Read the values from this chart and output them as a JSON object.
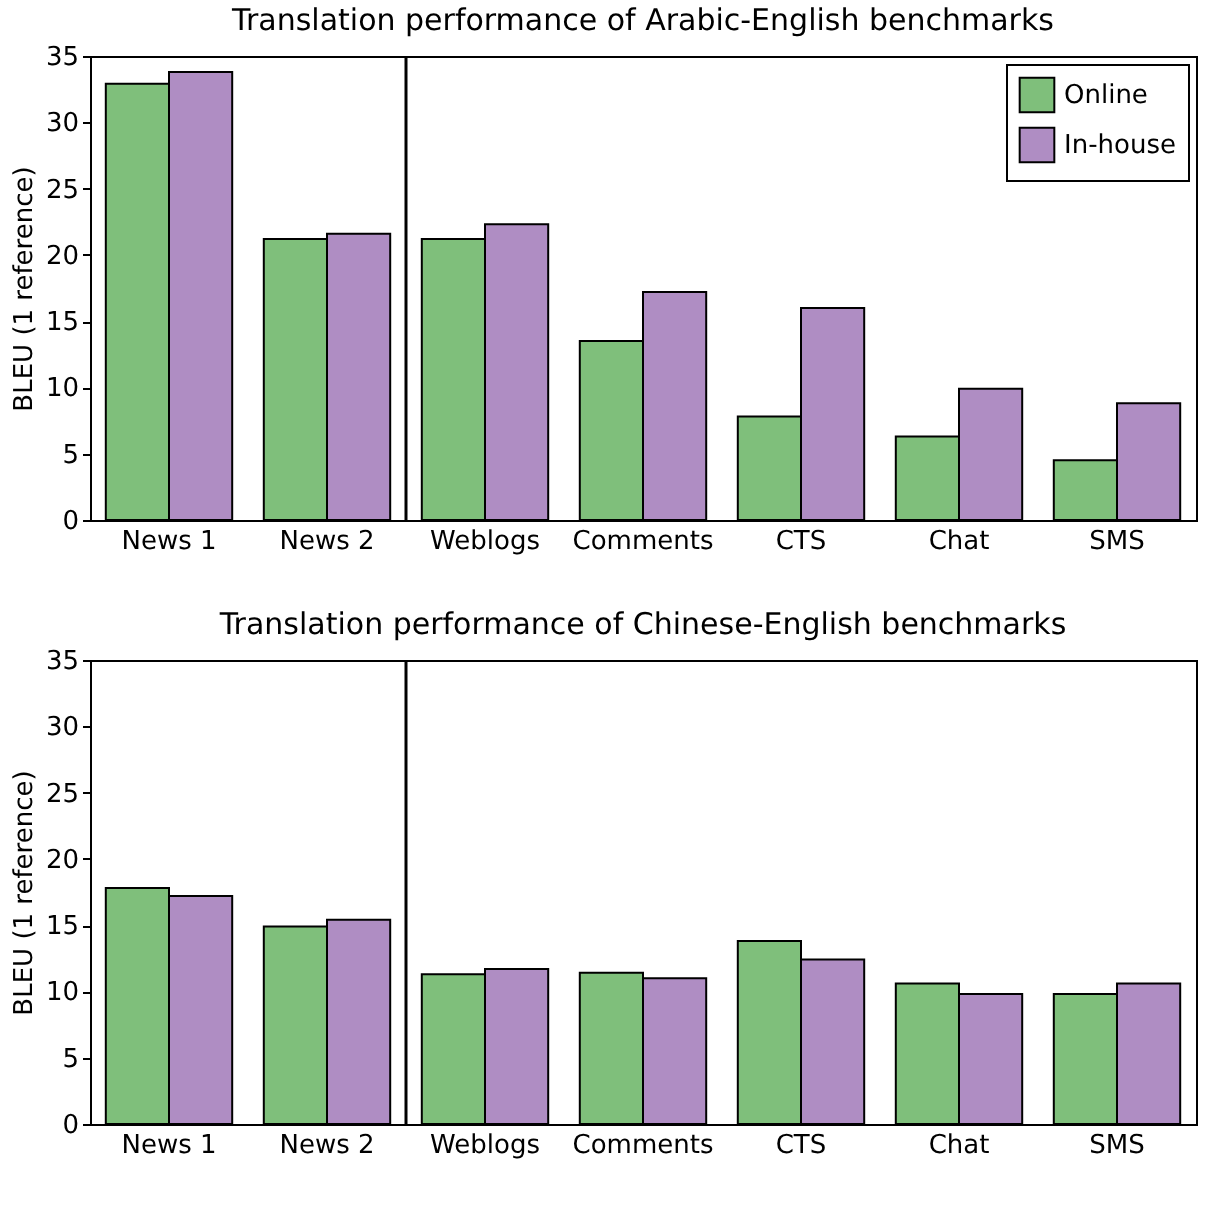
{
  "chart_data": [
    {
      "type": "bar",
      "title": "Translation performance of Arabic-English benchmarks",
      "ylabel": "BLEU (1 reference)",
      "categories": [
        "News 1",
        "News 2",
        "Weblogs",
        "Comments",
        "CTS",
        "Chat",
        "SMS"
      ],
      "series": [
        {
          "name": "Online",
          "color": "#7fbf7b",
          "values": [
            32.9,
            21.2,
            21.2,
            13.5,
            7.8,
            6.3,
            4.5
          ]
        },
        {
          "name": "In-house",
          "color": "#af8dc3",
          "values": [
            33.8,
            21.6,
            22.3,
            17.2,
            16.0,
            9.9,
            8.8
          ]
        }
      ],
      "ylim": [
        0,
        35
      ],
      "yticks": [
        0,
        5,
        10,
        15,
        20,
        25,
        30,
        35
      ],
      "legend": "top right"
    },
    {
      "type": "bar",
      "title": "Translation performance of Chinese-English benchmarks",
      "ylabel": "BLEU (1 reference)",
      "categories": [
        "News 1",
        "News 2",
        "Weblogs",
        "Comments",
        "CTS",
        "Chat",
        "SMS"
      ],
      "series": [
        {
          "name": "Online",
          "color": "#7fbf7b",
          "values": [
            17.8,
            14.9,
            11.3,
            11.4,
            13.8,
            10.6,
            9.8
          ]
        },
        {
          "name": "In-house",
          "color": "#af8dc3",
          "values": [
            17.2,
            15.4,
            11.7,
            11.0,
            12.4,
            9.8,
            10.6
          ]
        }
      ],
      "ylim": [
        0,
        35
      ],
      "yticks": [
        0,
        5,
        10,
        15,
        20,
        25,
        30,
        35
      ],
      "legend": "top right"
    }
  ]
}
